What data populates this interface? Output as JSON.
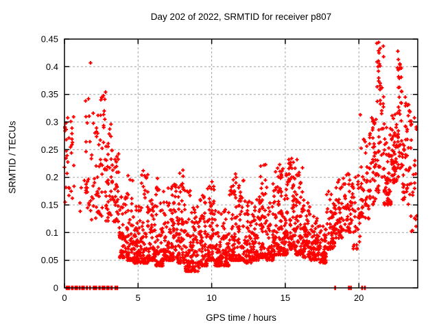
{
  "chart_data": {
    "type": "scatter",
    "title": "Day 202 of 2022, SRMTID for receiver p807",
    "xlabel": "GPS time / hours",
    "ylabel": "SRMTID / TECUs",
    "xlim": [
      0,
      24
    ],
    "ylim": [
      0,
      0.45
    ],
    "xticks": [
      "0",
      "5",
      "10",
      "15",
      "20"
    ],
    "yticks": [
      "0",
      "0.05",
      "0.1",
      "0.15",
      "0.2",
      "0.25",
      "0.3",
      "0.35",
      "0.4",
      "0.45"
    ],
    "grid": {
      "show": true,
      "color": "#a0a0a0",
      "dash": [
        3,
        3
      ]
    },
    "border_color": "#000000",
    "marker": {
      "shape": "plus",
      "color": "#ff0000",
      "size": 7,
      "stroke_width": 2
    },
    "legend": null,
    "seed": 42,
    "density_bins": [
      [
        0.0,
        0.15,
        8,
        0.15,
        0.31,
        1.0
      ],
      [
        0.15,
        0.7,
        16,
        0.16,
        0.32,
        1.2
      ],
      [
        0.7,
        1.4,
        4,
        0.13,
        0.2,
        1.0
      ],
      [
        1.4,
        1.8,
        20,
        0.13,
        0.34,
        1.3
      ],
      [
        1.8,
        2.3,
        26,
        0.12,
        0.32,
        1.3
      ],
      [
        2.3,
        2.8,
        30,
        0.13,
        0.355,
        1.4
      ],
      [
        2.8,
        3.2,
        34,
        0.12,
        0.32,
        1.5
      ],
      [
        3.2,
        3.7,
        40,
        0.12,
        0.25,
        1.8
      ],
      [
        3.7,
        4.2,
        45,
        0.055,
        0.17,
        2.2
      ],
      [
        4.2,
        4.7,
        60,
        0.05,
        0.205,
        2.6
      ],
      [
        4.7,
        5.2,
        65,
        0.045,
        0.15,
        2.4
      ],
      [
        5.2,
        5.7,
        65,
        0.045,
        0.215,
        2.8
      ],
      [
        5.7,
        6.2,
        60,
        0.05,
        0.16,
        2.4
      ],
      [
        6.2,
        6.7,
        60,
        0.04,
        0.2,
        2.6
      ],
      [
        6.7,
        7.2,
        60,
        0.05,
        0.185,
        2.4
      ],
      [
        7.2,
        7.7,
        60,
        0.05,
        0.19,
        2.4
      ],
      [
        7.7,
        8.2,
        65,
        0.045,
        0.215,
        2.4
      ],
      [
        8.2,
        8.7,
        60,
        0.03,
        0.18,
        2.4
      ],
      [
        8.7,
        9.2,
        55,
        0.03,
        0.15,
        2.2
      ],
      [
        9.2,
        9.7,
        60,
        0.04,
        0.17,
        2.4
      ],
      [
        9.7,
        10.2,
        60,
        0.05,
        0.195,
        2.4
      ],
      [
        10.2,
        10.7,
        55,
        0.04,
        0.14,
        2.2
      ],
      [
        10.7,
        11.2,
        55,
        0.04,
        0.15,
        2.2
      ],
      [
        11.2,
        11.7,
        60,
        0.05,
        0.21,
        2.6
      ],
      [
        11.7,
        12.2,
        60,
        0.05,
        0.205,
        2.6
      ],
      [
        12.2,
        12.7,
        55,
        0.045,
        0.16,
        2.2
      ],
      [
        12.7,
        13.2,
        55,
        0.05,
        0.17,
        2.2
      ],
      [
        13.2,
        13.7,
        60,
        0.055,
        0.225,
        2.4
      ],
      [
        13.7,
        14.2,
        60,
        0.05,
        0.19,
        2.2
      ],
      [
        14.2,
        14.7,
        65,
        0.06,
        0.225,
        2.4
      ],
      [
        14.7,
        15.2,
        65,
        0.06,
        0.22,
        2.2
      ],
      [
        15.2,
        15.7,
        70,
        0.07,
        0.235,
        2.0
      ],
      [
        15.7,
        16.2,
        65,
        0.06,
        0.22,
        2.0
      ],
      [
        16.2,
        16.7,
        60,
        0.055,
        0.16,
        1.8
      ],
      [
        16.7,
        17.2,
        60,
        0.05,
        0.13,
        1.6
      ],
      [
        17.2,
        17.8,
        70,
        0.045,
        0.115,
        1.4
      ],
      [
        17.8,
        18.4,
        55,
        0.07,
        0.185,
        1.6
      ],
      [
        18.4,
        19.0,
        50,
        0.09,
        0.2,
        1.4
      ],
      [
        19.0,
        19.6,
        45,
        0.1,
        0.21,
        1.4
      ],
      [
        19.6,
        20.1,
        30,
        0.07,
        0.22,
        1.2
      ],
      [
        20.1,
        20.7,
        40,
        0.12,
        0.27,
        1.2
      ],
      [
        20.7,
        21.2,
        45,
        0.15,
        0.31,
        1.2
      ],
      [
        21.2,
        21.7,
        45,
        0.17,
        0.445,
        1.1
      ],
      [
        21.7,
        22.2,
        55,
        0.15,
        0.3,
        1.5
      ],
      [
        22.2,
        22.6,
        50,
        0.19,
        0.32,
        1.3
      ],
      [
        22.6,
        22.95,
        40,
        0.2,
        0.43,
        1.1
      ],
      [
        22.95,
        23.5,
        45,
        0.15,
        0.345,
        1.2
      ],
      [
        23.5,
        23.95,
        25,
        0.1,
        0.31,
        1.2
      ]
    ],
    "highlight_points": [
      [
        0.0,
        0.218
      ],
      [
        0.1,
        0.298
      ],
      [
        0.12,
        0.268
      ],
      [
        0.51,
        0.289
      ],
      [
        0.51,
        0.279
      ],
      [
        0.51,
        0.269
      ],
      [
        0.51,
        0.259
      ],
      [
        0.47,
        0.244
      ],
      [
        1.63,
        0.342
      ],
      [
        1.77,
        0.407
      ],
      [
        2.28,
        0.312
      ],
      [
        2.7,
        0.32
      ],
      [
        2.74,
        0.341
      ],
      [
        2.79,
        0.354
      ],
      [
        2.74,
        0.305
      ],
      [
        4.32,
        0.203
      ],
      [
        5.35,
        0.212
      ],
      [
        6.32,
        0.198
      ],
      [
        8.05,
        0.213
      ],
      [
        10.02,
        0.192
      ],
      [
        11.62,
        0.206
      ],
      [
        13.55,
        0.222
      ],
      [
        14.62,
        0.223
      ],
      [
        15.8,
        0.232
      ],
      [
        20.1,
        0.313
      ],
      [
        21.3,
        0.4
      ],
      [
        21.35,
        0.444
      ],
      [
        21.37,
        0.425
      ],
      [
        21.4,
        0.405
      ],
      [
        21.33,
        0.392
      ],
      [
        21.45,
        0.37
      ],
      [
        22.62,
        0.398
      ],
      [
        22.65,
        0.428
      ],
      [
        22.68,
        0.413
      ],
      [
        22.7,
        0.382
      ],
      [
        23.15,
        0.345
      ],
      [
        23.3,
        0.33
      ]
    ],
    "zero_value_runs_hours": [
      [
        0.08,
        0.38
      ],
      [
        0.44,
        0.62
      ],
      [
        0.68,
        0.92
      ],
      [
        0.98,
        1.08
      ],
      [
        1.14,
        1.38
      ],
      [
        1.46,
        1.6
      ],
      [
        1.7,
        1.78
      ],
      [
        1.92,
        2.22
      ],
      [
        2.3,
        2.46
      ],
      [
        2.52,
        2.78
      ],
      [
        2.84,
        3.06
      ],
      [
        3.12,
        3.28
      ],
      [
        3.44,
        3.48
      ],
      [
        3.56,
        3.62
      ],
      [
        18.36,
        18.42
      ],
      [
        19.3,
        19.34
      ],
      [
        19.44,
        19.48
      ],
      [
        20.2,
        20.24
      ],
      [
        20.38,
        20.44
      ]
    ]
  }
}
